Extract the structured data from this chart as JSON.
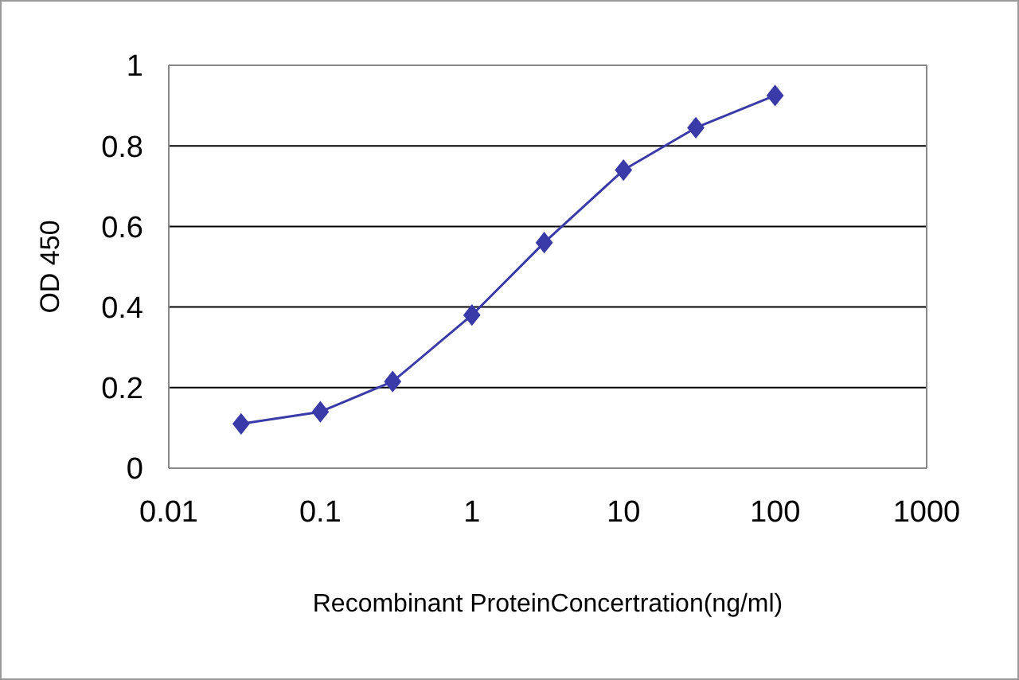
{
  "chart_data": {
    "type": "line",
    "xlabel": "Recombinant ProteinConcertration(ng/ml)",
    "ylabel": "OD 450",
    "x": [
      0.03,
      0.1,
      0.3,
      1,
      3,
      10,
      30,
      100
    ],
    "series": [
      {
        "color": "#3a3aa8",
        "values": [
          0.11,
          0.14,
          0.215,
          0.38,
          0.56,
          0.74,
          0.845,
          0.925
        ]
      }
    ],
    "log": "x",
    "xlim": [
      0.01,
      1000
    ],
    "xticks": [
      0.01,
      0.1,
      1,
      10,
      100,
      1000
    ],
    "ylim": [
      0,
      1
    ],
    "yticks": [
      0,
      0.2,
      0.4,
      0.6,
      0.8,
      1
    ],
    "grid": "y",
    "marker": "diamond",
    "line_style": "solid"
  }
}
